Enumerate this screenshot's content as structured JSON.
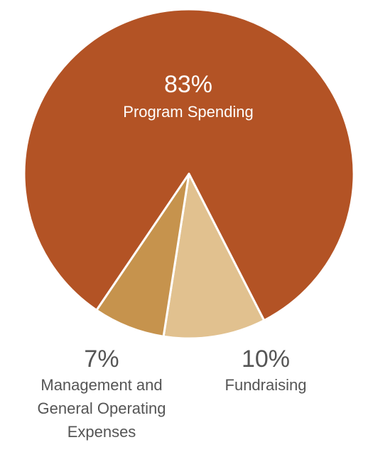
{
  "chart_data": {
    "type": "pie",
    "title": "",
    "slices": [
      {
        "label_lines": [
          "Program Spending"
        ],
        "value": 83,
        "value_label": "83%",
        "color": "#b35325"
      },
      {
        "label_lines": [
          "Fundraising"
        ],
        "value": 10,
        "value_label": "10%",
        "color": "#e1c18f"
      },
      {
        "label_lines": [
          "Management and",
          "General Operating",
          "Expenses"
        ],
        "value": 7,
        "value_label": "7%",
        "color": "#c6934d"
      }
    ],
    "legend": "none"
  }
}
